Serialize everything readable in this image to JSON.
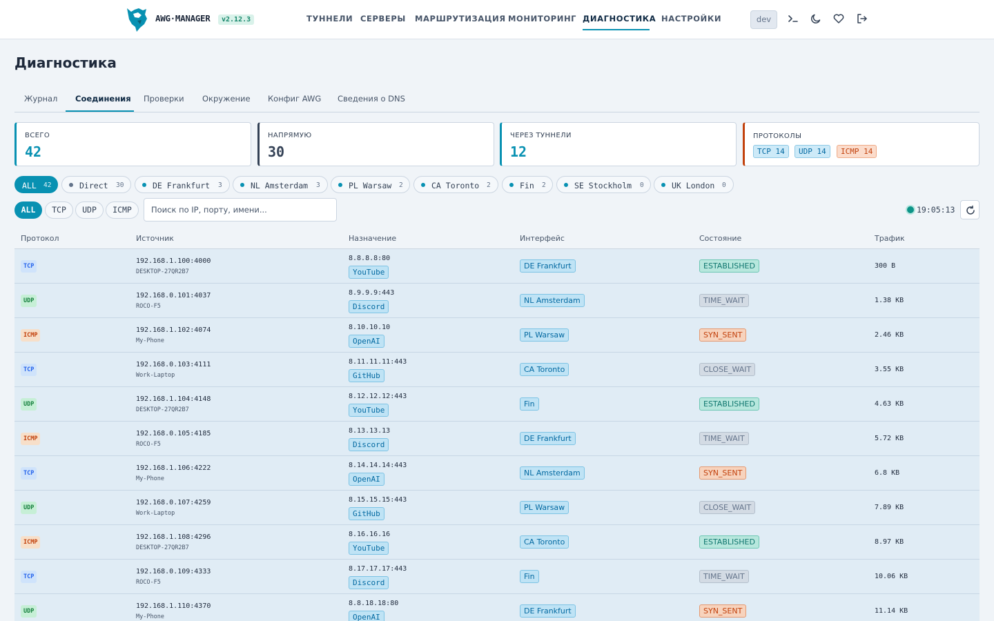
{
  "header": {
    "brand": "AWG·MANAGER",
    "version": "v2.12.3",
    "nav": [
      "ТУННЕЛИ",
      "СЕРВЕРЫ",
      "МАРШРУТИЗАЦИЯ",
      "МОНИТОРИНГ",
      "ДИАГНОСТИКА",
      "НАСТРОЙКИ"
    ],
    "nav_active": "ДИАГНОСТИКА",
    "dev_label": "dev",
    "icons": [
      "terminal-icon",
      "moon-icon",
      "heart-icon",
      "logout-icon"
    ]
  },
  "page": {
    "title": "Диагностика",
    "tabs": [
      "Журнал",
      "Соединения",
      "Проверки",
      "Окружение",
      "Конфиг AWG",
      "Сведения о DNS"
    ],
    "active_tab": "Соединения"
  },
  "stats": {
    "total": {
      "label": "ВСЕГО",
      "value": "42"
    },
    "direct": {
      "label": "НАПРЯМУЮ",
      "value": "30"
    },
    "tunnels": {
      "label": "ЧЕРЕЗ ТУННЕЛИ",
      "value": "12"
    },
    "protocols": {
      "label": "ПРОТОКОЛЫ",
      "items": [
        "TCP 14",
        "UDP 14",
        "ICMP 14"
      ]
    }
  },
  "interface_filter": [
    {
      "name": "ALL",
      "count": "42"
    },
    {
      "name": "Direct",
      "count": "30"
    },
    {
      "name": "DE Frankfurt",
      "count": "3"
    },
    {
      "name": "NL Amsterdam",
      "count": "3"
    },
    {
      "name": "PL Warsaw",
      "count": "2"
    },
    {
      "name": "CA Toronto",
      "count": "2"
    },
    {
      "name": "Fin",
      "count": "2"
    },
    {
      "name": "SE Stockholm",
      "count": "0"
    },
    {
      "name": "UK London",
      "count": "0"
    }
  ],
  "protocol_filter": [
    "ALL",
    "TCP",
    "UDP",
    "ICMP"
  ],
  "search": {
    "placeholder": "Поиск по IP, порту, имени...",
    "value": ""
  },
  "clock": "19:05:13",
  "table": {
    "columns": [
      "Протокол",
      "Источник",
      "Назначение",
      "Интерфейс",
      "Состояние",
      "Трафик"
    ],
    "rows": [
      {
        "proto": "TCP",
        "src_ip": "192.168.1.100:4000",
        "src_host": "DESKTOP-27QR2B7",
        "dst_ip": "8.8.8.8:80",
        "dst_service": "YouTube",
        "iface": "DE Frankfurt",
        "state": "ESTABLISHED",
        "traffic": "300 B"
      },
      {
        "proto": "UDP",
        "src_ip": "192.168.0.101:4037",
        "src_host": "ROCO-F5",
        "dst_ip": "8.9.9.9:443",
        "dst_service": "Discord",
        "iface": "NL Amsterdam",
        "state": "TIME_WAIT",
        "traffic": "1.38 KB"
      },
      {
        "proto": "ICMP",
        "src_ip": "192.168.1.102:4074",
        "src_host": "My-Phone",
        "dst_ip": "8.10.10.10",
        "dst_service": "OpenAI",
        "iface": "PL Warsaw",
        "state": "SYN_SENT",
        "traffic": "2.46 KB"
      },
      {
        "proto": "TCP",
        "src_ip": "192.168.0.103:4111",
        "src_host": "Work-Laptop",
        "dst_ip": "8.11.11.11:443",
        "dst_service": "GitHub",
        "iface": "CA Toronto",
        "state": "CLOSE_WAIT",
        "traffic": "3.55 KB"
      },
      {
        "proto": "UDP",
        "src_ip": "192.168.1.104:4148",
        "src_host": "DESKTOP-27QR2B7",
        "dst_ip": "8.12.12.12:443",
        "dst_service": "YouTube",
        "iface": "Fin",
        "state": "ESTABLISHED",
        "traffic": "4.63 KB"
      },
      {
        "proto": "ICMP",
        "src_ip": "192.168.0.105:4185",
        "src_host": "ROCO-F5",
        "dst_ip": "8.13.13.13",
        "dst_service": "Discord",
        "iface": "DE Frankfurt",
        "state": "TIME_WAIT",
        "traffic": "5.72 KB"
      },
      {
        "proto": "TCP",
        "src_ip": "192.168.1.106:4222",
        "src_host": "My-Phone",
        "dst_ip": "8.14.14.14:443",
        "dst_service": "OpenAI",
        "iface": "NL Amsterdam",
        "state": "SYN_SENT",
        "traffic": "6.8 KB"
      },
      {
        "proto": "UDP",
        "src_ip": "192.168.0.107:4259",
        "src_host": "Work-Laptop",
        "dst_ip": "8.15.15.15:443",
        "dst_service": "GitHub",
        "iface": "PL Warsaw",
        "state": "CLOSE_WAIT",
        "traffic": "7.89 KB"
      },
      {
        "proto": "ICMP",
        "src_ip": "192.168.1.108:4296",
        "src_host": "DESKTOP-27QR2B7",
        "dst_ip": "8.16.16.16",
        "dst_service": "YouTube",
        "iface": "CA Toronto",
        "state": "ESTABLISHED",
        "traffic": "8.97 KB"
      },
      {
        "proto": "TCP",
        "src_ip": "192.168.0.109:4333",
        "src_host": "ROCO-F5",
        "dst_ip": "8.17.17.17:443",
        "dst_service": "Discord",
        "iface": "Fin",
        "state": "TIME_WAIT",
        "traffic": "10.06 KB"
      },
      {
        "proto": "UDP",
        "src_ip": "192.168.1.110:4370",
        "src_host": "My-Phone",
        "dst_ip": "8.8.18.18:80",
        "dst_service": "OpenAI",
        "iface": "DE Frankfurt",
        "state": "SYN_SENT",
        "traffic": "11.14 KB"
      }
    ]
  },
  "colors": {
    "accent": "#0891b2",
    "background": "#f0f4f8",
    "row_background": "#e0ecf5",
    "tcp": "#2563eb",
    "udp": "#15803d",
    "icmp": "#c2410c",
    "established": "#0f766e",
    "time_wait": "#64748b",
    "syn_sent": "#c2410c",
    "close_wait": "#64748b"
  }
}
